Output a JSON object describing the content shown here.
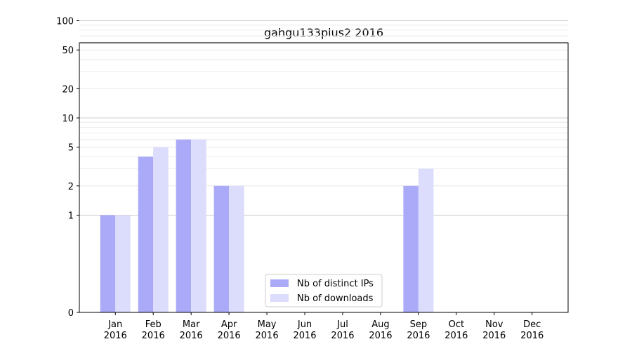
{
  "chart_data": {
    "type": "bar",
    "title": "gahgu133plus2 2016",
    "xlabel": "",
    "ylabel": "",
    "y_scale": "symlog",
    "y_ticks": [
      0,
      1,
      2,
      5,
      10,
      20,
      50,
      100
    ],
    "grid": true,
    "legend_position": "bottom-center",
    "categories": [
      [
        "Jan",
        "2016"
      ],
      [
        "Feb",
        "2016"
      ],
      [
        "Mar",
        "2016"
      ],
      [
        "Apr",
        "2016"
      ],
      [
        "May",
        "2016"
      ],
      [
        "Jun",
        "2016"
      ],
      [
        "Jul",
        "2016"
      ],
      [
        "Aug",
        "2016"
      ],
      [
        "Sep",
        "2016"
      ],
      [
        "Oct",
        "2016"
      ],
      [
        "Nov",
        "2016"
      ],
      [
        "Dec",
        "2016"
      ]
    ],
    "series": [
      {
        "name": "Nb of distinct IPs",
        "color": "#aaaaf8",
        "values": [
          1,
          4,
          6,
          2,
          0,
          0,
          0,
          0,
          2,
          0,
          0,
          0
        ]
      },
      {
        "name": "Nb of downloads",
        "color": "#dcdcfc",
        "values": [
          1,
          5,
          6,
          2,
          0,
          0,
          0,
          0,
          3,
          0,
          0,
          0
        ]
      }
    ]
  }
}
